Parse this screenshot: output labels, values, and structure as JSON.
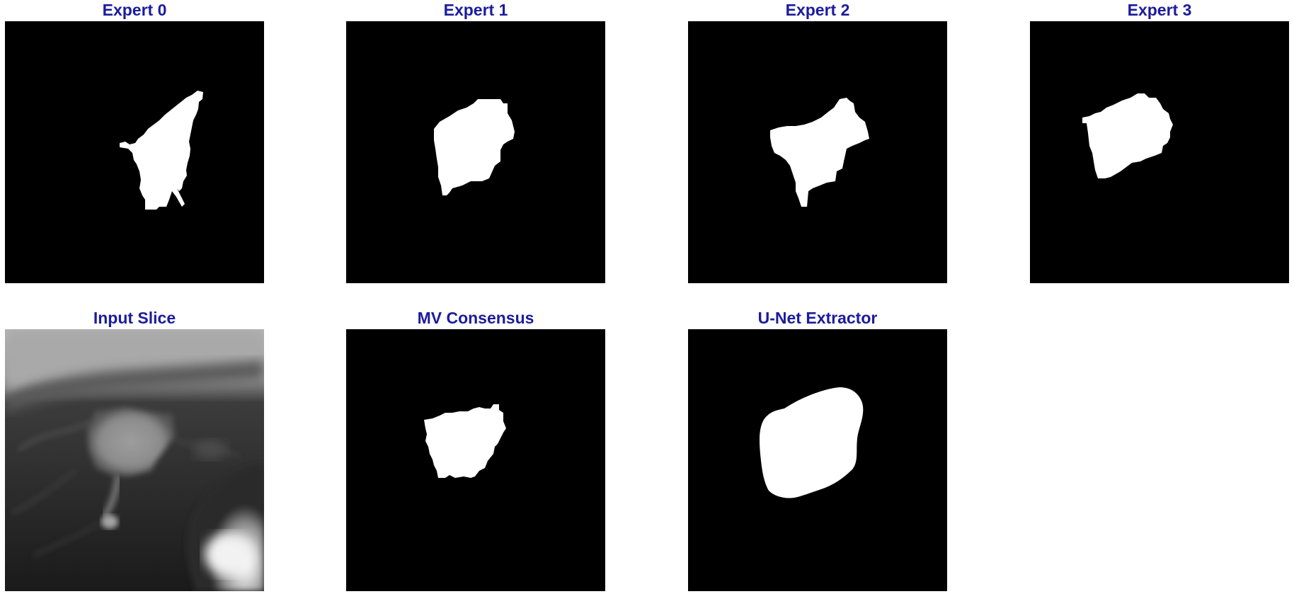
{
  "panels": [
    {
      "title": "Expert 0",
      "kind": "mask"
    },
    {
      "title": "Expert 1",
      "kind": "mask"
    },
    {
      "title": "Expert 2",
      "kind": "mask"
    },
    {
      "title": "Expert 3",
      "kind": "mask"
    },
    {
      "title": "Input Slice",
      "kind": "ct-slice"
    },
    {
      "title": "MV Consensus",
      "kind": "mask"
    },
    {
      "title": "U-Net Extractor",
      "kind": "smooth-mask"
    }
  ],
  "colors": {
    "title": "#1c1c9c",
    "mask_background": "#000000",
    "mask_foreground": "#ffffff"
  }
}
